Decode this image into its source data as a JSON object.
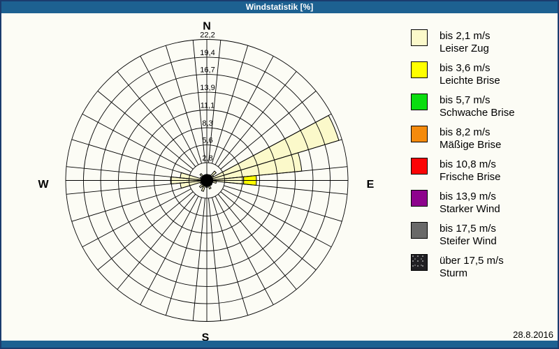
{
  "window": {
    "title": "Windstatistik [%]",
    "date": "28.8.2016"
  },
  "colors": {
    "titlebar": "#1D6191",
    "window_border": "#1B3C6E",
    "background": "#FCFCF5",
    "grid": "#000000"
  },
  "legend": {
    "items": [
      {
        "speed": "bis 2,1 m/s",
        "name": "Leiser Zug",
        "color": "#FBF9CA",
        "textured": false
      },
      {
        "speed": "bis 3,6 m/s",
        "name": "Leichte Brise",
        "color": "#FFFF00",
        "textured": false
      },
      {
        "speed": "bis 5,7 m/s",
        "name": "Schwache Brise",
        "color": "#0ADD10",
        "textured": false
      },
      {
        "speed": "bis 8,2 m/s",
        "name": "Mäßige Brise",
        "color": "#F48A0C",
        "textured": false
      },
      {
        "speed": "bis 10,8 m/s",
        "name": "Frische Brise",
        "color": "#FB0406",
        "textured": false
      },
      {
        "speed": "bis 13,9 m/s",
        "name": "Starker Wind",
        "color": "#8D038D",
        "textured": false
      },
      {
        "speed": "bis 17,5 m/s",
        "name": "Steifer Wind",
        "color": "#696969",
        "textured": false
      },
      {
        "speed": "über 17,5 m/s",
        "name": "Sturm",
        "color": "#201F23",
        "textured": true
      }
    ]
  },
  "chart_data": {
    "type": "windrose",
    "title": "Windstatistik [%]",
    "units": "%",
    "sector_width_deg": 11.25,
    "rings": [
      2.8,
      5.6,
      8.3,
      11.1,
      13.9,
      16.7,
      19.4,
      22.2
    ],
    "ring_labels": [
      "2,8",
      "5,6",
      "8,3",
      "11,1",
      "13,9",
      "16,7",
      "19,4",
      "22,2"
    ],
    "max_ring": 22.2,
    "center_dot_pct": 1.0,
    "compass": {
      "north": "N",
      "east": "E",
      "south": "S",
      "west": "W"
    },
    "speed_class_order": [
      "bis 2,1 m/s",
      "bis 3,6 m/s",
      "bis 5,7 m/s",
      "bis 8,2 m/s",
      "bis 10,8 m/s",
      "bis 13,9 m/s",
      "bis 17,5 m/s",
      "über 17,5 m/s"
    ],
    "sectors": [
      {
        "azimuth": 0.0,
        "values": [
          0.9
        ]
      },
      {
        "azimuth": 11.25,
        "values": [
          0.6
        ]
      },
      {
        "azimuth": 22.5,
        "values": [
          0.7
        ]
      },
      {
        "azimuth": 33.75,
        "values": [
          1.0
        ]
      },
      {
        "azimuth": 45.0,
        "values": [
          1.9
        ]
      },
      {
        "azimuth": 56.25,
        "values": [
          1.2
        ]
      },
      {
        "azimuth": 67.5,
        "values": [
          21.7
        ]
      },
      {
        "azimuth": 78.75,
        "values": [
          15.0
        ]
      },
      {
        "azimuth": 90.0,
        "values": [
          5.8,
          2.0
        ]
      },
      {
        "azimuth": 101.25,
        "values": [
          1.5
        ]
      },
      {
        "azimuth": 112.5,
        "values": [
          0.9
        ]
      },
      {
        "azimuth": 123.75,
        "values": [
          0.6
        ]
      },
      {
        "azimuth": 135.0,
        "values": [
          1.0
        ]
      },
      {
        "azimuth": 146.25,
        "values": [
          0.7
        ]
      },
      {
        "azimuth": 157.5,
        "values": [
          1.4
        ]
      },
      {
        "azimuth": 168.75,
        "values": [
          0.8
        ]
      },
      {
        "azimuth": 180.0,
        "values": [
          1.1
        ]
      },
      {
        "azimuth": 191.25,
        "values": [
          0.9
        ]
      },
      {
        "azimuth": 202.5,
        "values": [
          1.8
        ]
      },
      {
        "azimuth": 213.75,
        "values": [
          1.2
        ]
      },
      {
        "azimuth": 225.0,
        "values": [
          1.5
        ]
      },
      {
        "azimuth": 236.25,
        "values": [
          0.8
        ]
      },
      {
        "azimuth": 247.5,
        "values": [
          1.1
        ]
      },
      {
        "azimuth": 258.75,
        "values": [
          4.2
        ]
      },
      {
        "azimuth": 270.0,
        "values": [
          5.7
        ]
      },
      {
        "azimuth": 281.25,
        "values": [
          4.2
        ]
      },
      {
        "azimuth": 292.5,
        "values": [
          1.1
        ]
      },
      {
        "azimuth": 303.75,
        "values": [
          0.9
        ]
      },
      {
        "azimuth": 315.0,
        "values": [
          1.4
        ]
      },
      {
        "azimuth": 326.25,
        "values": [
          0.8
        ]
      },
      {
        "azimuth": 337.5,
        "values": [
          0.6
        ]
      },
      {
        "azimuth": 348.75,
        "values": [
          0.9
        ]
      }
    ]
  }
}
